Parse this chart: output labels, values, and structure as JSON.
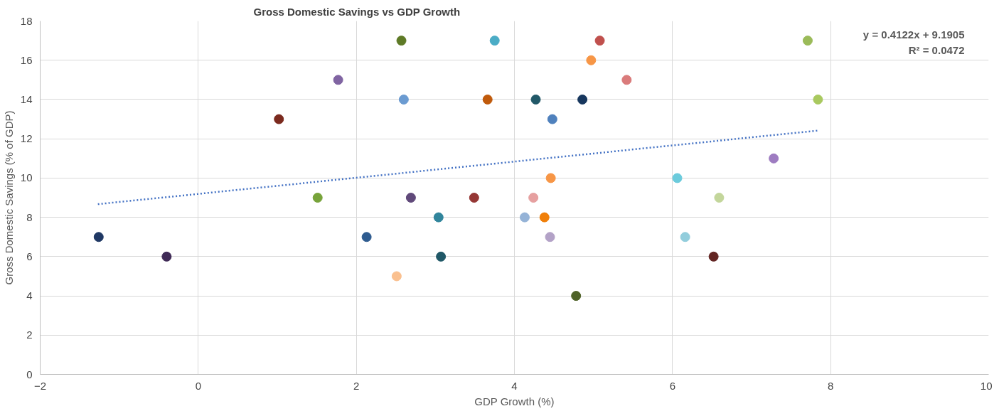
{
  "chart_data": {
    "type": "scatter",
    "title": "Gross Domestic Savings vs GDP Growth",
    "xlabel": "GDP Growth (%)",
    "ylabel": "Gross Domestic Savings (% of GDP)",
    "xlim": [
      -2,
      10
    ],
    "ylim": [
      0,
      18
    ],
    "xticks": [
      -2,
      0,
      2,
      4,
      6,
      8,
      10
    ],
    "yticks": [
      0,
      2,
      4,
      6,
      8,
      10,
      12,
      14,
      16,
      18
    ],
    "grid": true,
    "annotations": [
      "y = 0.4122x + 9.1905",
      "R² = 0.0472"
    ],
    "series": [
      {
        "marker": "circle",
        "x": [
          -1.26,
          -0.4,
          1.02,
          1.77,
          1.51,
          2.13,
          2.51,
          2.57,
          2.6,
          2.69,
          3.04,
          3.07,
          3.49,
          3.66,
          3.75,
          4.13,
          4.24,
          4.27,
          4.38,
          4.45,
          4.46,
          4.48,
          4.78,
          4.86,
          4.97,
          5.08,
          5.42,
          6.06,
          6.16,
          6.52,
          6.59,
          7.28,
          7.71,
          7.84
        ],
        "values": [
          7,
          6,
          13,
          15,
          9,
          7,
          5,
          17,
          14,
          9,
          8,
          6,
          9,
          14,
          17,
          8,
          9,
          14,
          8,
          7,
          10,
          13,
          4,
          14,
          16,
          17,
          15,
          10,
          7,
          6,
          9,
          11,
          17,
          14
        ],
        "colors": [
          "#1f3864",
          "#3f2a56",
          "#7b2a1e",
          "#8064a2",
          "#77a33a",
          "#2e5b8f",
          "#fac08f",
          "#5e7a26",
          "#6b9bd1",
          "#60497a",
          "#31859c",
          "#205867",
          "#953735",
          "#c05a0b",
          "#4bacc6",
          "#95b3d7",
          "#e6a0a0",
          "#215868",
          "#f07f09",
          "#b3a2c7",
          "#f79646",
          "#4f81bd",
          "#4f6228",
          "#17375e",
          "#f79646",
          "#c0504d",
          "#da7b7b",
          "#6ccbdc",
          "#92cddc",
          "#632523",
          "#c3d69b",
          "#9e7cc1",
          "#9bbb59",
          "#a9c95f"
        ]
      },
      {
        "type": "line",
        "x": [
          -1.27,
          7.84
        ],
        "values": [
          8.67,
          12.42
        ],
        "color": "#4472c4",
        "line_style": "dotted"
      }
    ]
  }
}
